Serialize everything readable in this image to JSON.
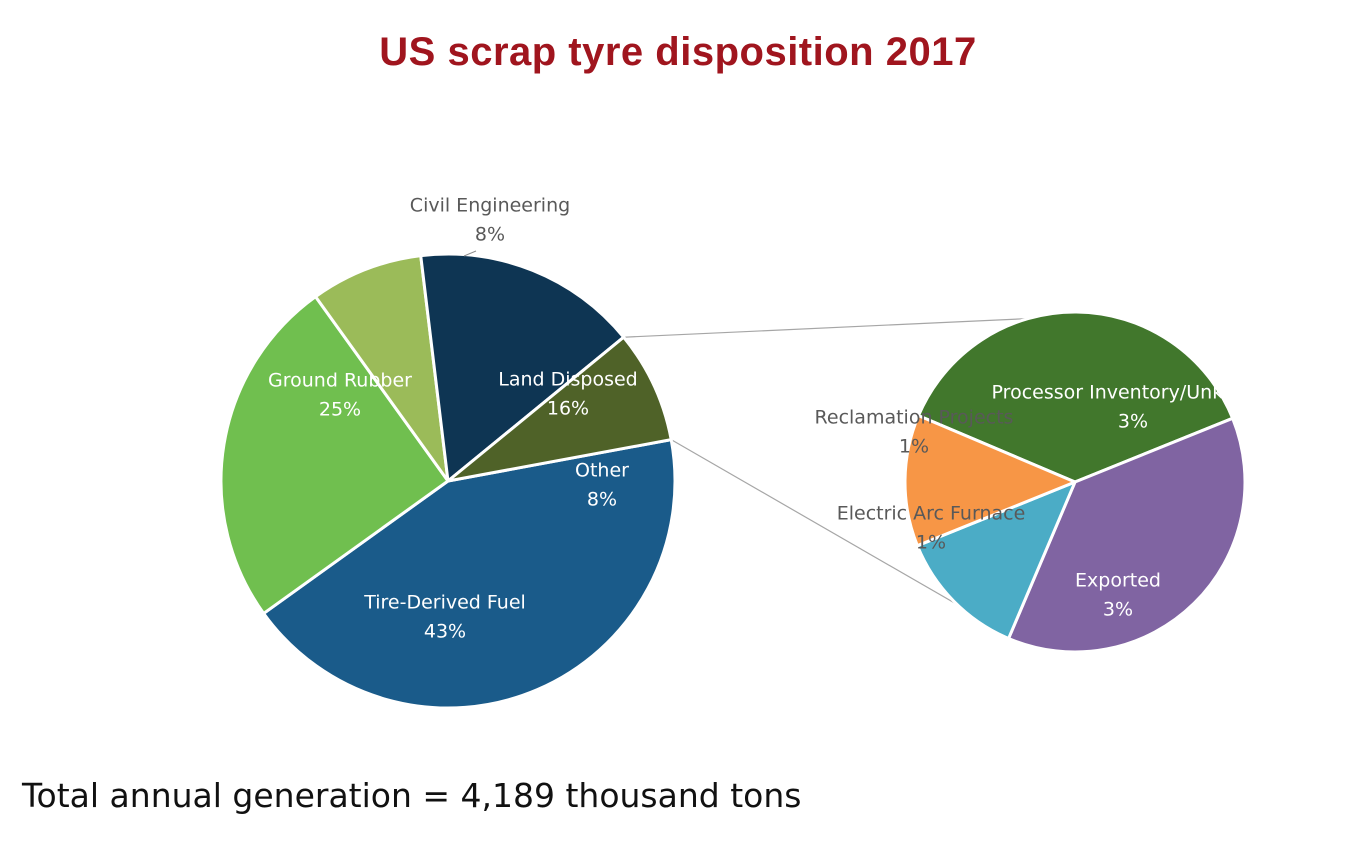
{
  "title": "US scrap tyre disposition 2017",
  "footnote": "Total annual generation = 4,189 thousand tons",
  "chart_data": [
    {
      "type": "pie",
      "role": "main",
      "slices": [
        {
          "label": "Tire-Derived Fuel",
          "value": 43,
          "value_label": "43%",
          "color": "#1A5B8A",
          "label_color": "#ffffff"
        },
        {
          "label": "Ground Rubber",
          "value": 25,
          "value_label": "25%",
          "color": "#70BF4F",
          "label_color": "#ffffff"
        },
        {
          "label": "Civil Engineering",
          "value": 8,
          "value_label": "8%",
          "color": "#9BBB59",
          "label_color": "#595959"
        },
        {
          "label": "Land Disposed",
          "value": 16,
          "value_label": "16%",
          "color": "#0E3553",
          "label_color": "#ffffff"
        },
        {
          "label": "Other",
          "value": 8,
          "value_label": "8%",
          "color": "#4F6228",
          "label_color": "#ffffff"
        }
      ]
    },
    {
      "type": "pie",
      "role": "breakdown-of-other",
      "slices": [
        {
          "label": "Processor Inventory/Unknown",
          "value": 3,
          "value_label": "3%",
          "color": "#41772C",
          "label_color": "#ffffff"
        },
        {
          "label": "Exported",
          "value": 3,
          "value_label": "3%",
          "color": "#8064A2",
          "label_color": "#ffffff"
        },
        {
          "label": "Electric Arc Furnace",
          "value": 1,
          "value_label": "1%",
          "color": "#4BACC6",
          "label_color": "#595959"
        },
        {
          "label": "Reclamation Projects",
          "value": 1,
          "value_label": "1%",
          "color": "#F79646",
          "label_color": "#595959"
        }
      ]
    }
  ]
}
